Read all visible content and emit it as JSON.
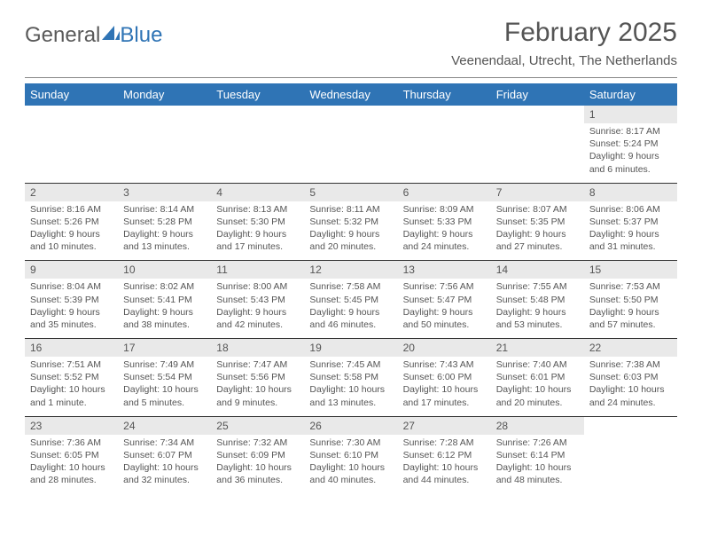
{
  "logo": {
    "text_gray": "General",
    "text_blue": "Blue"
  },
  "title": "February 2025",
  "location": "Veenendaal, Utrecht, The Netherlands",
  "colors": {
    "header_bg": "#2f74b5",
    "header_fg": "#ffffff",
    "daynum_bg": "#e9e9e9",
    "text": "#555555",
    "rule": "#333333"
  },
  "typography": {
    "title_fontsize": 30,
    "location_fontsize": 15,
    "weekday_fontsize": 13,
    "daynum_fontsize": 12,
    "body_fontsize": 10.5
  },
  "weekdays": [
    "Sunday",
    "Monday",
    "Tuesday",
    "Wednesday",
    "Thursday",
    "Friday",
    "Saturday"
  ],
  "weeks": [
    [
      {
        "n": "",
        "sr": "",
        "ss": "",
        "dl": ""
      },
      {
        "n": "",
        "sr": "",
        "ss": "",
        "dl": ""
      },
      {
        "n": "",
        "sr": "",
        "ss": "",
        "dl": ""
      },
      {
        "n": "",
        "sr": "",
        "ss": "",
        "dl": ""
      },
      {
        "n": "",
        "sr": "",
        "ss": "",
        "dl": ""
      },
      {
        "n": "",
        "sr": "",
        "ss": "",
        "dl": ""
      },
      {
        "n": "1",
        "sr": "Sunrise: 8:17 AM",
        "ss": "Sunset: 5:24 PM",
        "dl": "Daylight: 9 hours and 6 minutes."
      }
    ],
    [
      {
        "n": "2",
        "sr": "Sunrise: 8:16 AM",
        "ss": "Sunset: 5:26 PM",
        "dl": "Daylight: 9 hours and 10 minutes."
      },
      {
        "n": "3",
        "sr": "Sunrise: 8:14 AM",
        "ss": "Sunset: 5:28 PM",
        "dl": "Daylight: 9 hours and 13 minutes."
      },
      {
        "n": "4",
        "sr": "Sunrise: 8:13 AM",
        "ss": "Sunset: 5:30 PM",
        "dl": "Daylight: 9 hours and 17 minutes."
      },
      {
        "n": "5",
        "sr": "Sunrise: 8:11 AM",
        "ss": "Sunset: 5:32 PM",
        "dl": "Daylight: 9 hours and 20 minutes."
      },
      {
        "n": "6",
        "sr": "Sunrise: 8:09 AM",
        "ss": "Sunset: 5:33 PM",
        "dl": "Daylight: 9 hours and 24 minutes."
      },
      {
        "n": "7",
        "sr": "Sunrise: 8:07 AM",
        "ss": "Sunset: 5:35 PM",
        "dl": "Daylight: 9 hours and 27 minutes."
      },
      {
        "n": "8",
        "sr": "Sunrise: 8:06 AM",
        "ss": "Sunset: 5:37 PM",
        "dl": "Daylight: 9 hours and 31 minutes."
      }
    ],
    [
      {
        "n": "9",
        "sr": "Sunrise: 8:04 AM",
        "ss": "Sunset: 5:39 PM",
        "dl": "Daylight: 9 hours and 35 minutes."
      },
      {
        "n": "10",
        "sr": "Sunrise: 8:02 AM",
        "ss": "Sunset: 5:41 PM",
        "dl": "Daylight: 9 hours and 38 minutes."
      },
      {
        "n": "11",
        "sr": "Sunrise: 8:00 AM",
        "ss": "Sunset: 5:43 PM",
        "dl": "Daylight: 9 hours and 42 minutes."
      },
      {
        "n": "12",
        "sr": "Sunrise: 7:58 AM",
        "ss": "Sunset: 5:45 PM",
        "dl": "Daylight: 9 hours and 46 minutes."
      },
      {
        "n": "13",
        "sr": "Sunrise: 7:56 AM",
        "ss": "Sunset: 5:47 PM",
        "dl": "Daylight: 9 hours and 50 minutes."
      },
      {
        "n": "14",
        "sr": "Sunrise: 7:55 AM",
        "ss": "Sunset: 5:48 PM",
        "dl": "Daylight: 9 hours and 53 minutes."
      },
      {
        "n": "15",
        "sr": "Sunrise: 7:53 AM",
        "ss": "Sunset: 5:50 PM",
        "dl": "Daylight: 9 hours and 57 minutes."
      }
    ],
    [
      {
        "n": "16",
        "sr": "Sunrise: 7:51 AM",
        "ss": "Sunset: 5:52 PM",
        "dl": "Daylight: 10 hours and 1 minute."
      },
      {
        "n": "17",
        "sr": "Sunrise: 7:49 AM",
        "ss": "Sunset: 5:54 PM",
        "dl": "Daylight: 10 hours and 5 minutes."
      },
      {
        "n": "18",
        "sr": "Sunrise: 7:47 AM",
        "ss": "Sunset: 5:56 PM",
        "dl": "Daylight: 10 hours and 9 minutes."
      },
      {
        "n": "19",
        "sr": "Sunrise: 7:45 AM",
        "ss": "Sunset: 5:58 PM",
        "dl": "Daylight: 10 hours and 13 minutes."
      },
      {
        "n": "20",
        "sr": "Sunrise: 7:43 AM",
        "ss": "Sunset: 6:00 PM",
        "dl": "Daylight: 10 hours and 17 minutes."
      },
      {
        "n": "21",
        "sr": "Sunrise: 7:40 AM",
        "ss": "Sunset: 6:01 PM",
        "dl": "Daylight: 10 hours and 20 minutes."
      },
      {
        "n": "22",
        "sr": "Sunrise: 7:38 AM",
        "ss": "Sunset: 6:03 PM",
        "dl": "Daylight: 10 hours and 24 minutes."
      }
    ],
    [
      {
        "n": "23",
        "sr": "Sunrise: 7:36 AM",
        "ss": "Sunset: 6:05 PM",
        "dl": "Daylight: 10 hours and 28 minutes."
      },
      {
        "n": "24",
        "sr": "Sunrise: 7:34 AM",
        "ss": "Sunset: 6:07 PM",
        "dl": "Daylight: 10 hours and 32 minutes."
      },
      {
        "n": "25",
        "sr": "Sunrise: 7:32 AM",
        "ss": "Sunset: 6:09 PM",
        "dl": "Daylight: 10 hours and 36 minutes."
      },
      {
        "n": "26",
        "sr": "Sunrise: 7:30 AM",
        "ss": "Sunset: 6:10 PM",
        "dl": "Daylight: 10 hours and 40 minutes."
      },
      {
        "n": "27",
        "sr": "Sunrise: 7:28 AM",
        "ss": "Sunset: 6:12 PM",
        "dl": "Daylight: 10 hours and 44 minutes."
      },
      {
        "n": "28",
        "sr": "Sunrise: 7:26 AM",
        "ss": "Sunset: 6:14 PM",
        "dl": "Daylight: 10 hours and 48 minutes."
      },
      {
        "n": "",
        "sr": "",
        "ss": "",
        "dl": ""
      }
    ]
  ]
}
